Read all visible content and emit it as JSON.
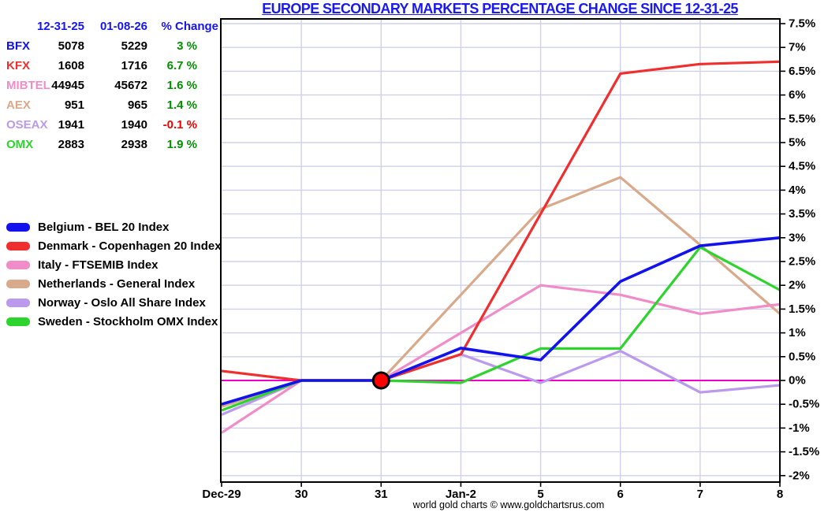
{
  "title": "EUROPE SECONDARY MARKETS PERCENTAGE CHANGE SINCE 12-31-25",
  "title_color": "#1a1af0",
  "footer": "world gold charts © www.goldchartsrus.com",
  "table": {
    "headers": [
      "12-31-25",
      "01-08-26",
      "% Change"
    ],
    "rows": [
      {
        "label": "BFX",
        "color": "#1212ee",
        "v1": "5078",
        "v2": "5229",
        "pct": "3 %",
        "pct_color": "#009000"
      },
      {
        "label": "KFX",
        "color": "#f02e2e",
        "v1": "1608",
        "v2": "1716",
        "pct": "6.7 %",
        "pct_color": "#009000"
      },
      {
        "label": "MIBTEL",
        "color": "#f08cc8",
        "v1": "44945",
        "v2": "45672",
        "pct": "1.6 %",
        "pct_color": "#009000"
      },
      {
        "label": "AEX",
        "color": "#d8a98a",
        "v1": "951",
        "v2": "965",
        "pct": "1.4 %",
        "pct_color": "#009000"
      },
      {
        "label": "OSEAX",
        "color": "#bb99ec",
        "v1": "1941",
        "v2": "1940",
        "pct": "-0.1 %",
        "pct_color": "#f00000"
      },
      {
        "label": "OMX",
        "color": "#2dd42d",
        "v1": "2883",
        "v2": "2938",
        "pct": "1.9 %",
        "pct_color": "#009000"
      }
    ]
  },
  "chart_data": {
    "type": "line",
    "categories": [
      "Dec-29",
      "30",
      "31",
      "Jan-2",
      "5",
      "6",
      "7",
      "8"
    ],
    "series": [
      {
        "name": "Belgium - BEL 20 Index",
        "color": "#1212ee",
        "values": [
          -0.5,
          0,
          0,
          0.68,
          0.43,
          2.08,
          2.83,
          3.0
        ]
      },
      {
        "name": "Denmark - Copenhagen 20 Index",
        "color": "#f02e2e",
        "values": [
          0.2,
          0,
          0,
          0.55,
          3.5,
          6.45,
          6.65,
          6.7
        ]
      },
      {
        "name": "Italy - FTSEMIB Index",
        "color": "#f08cc8",
        "values": [
          -1.1,
          0,
          0,
          1.0,
          2.0,
          1.8,
          1.4,
          1.6
        ]
      },
      {
        "name": "Netherlands - General Index",
        "color": "#d8a98a",
        "values": [
          -0.55,
          0,
          0,
          1.8,
          3.6,
          4.27,
          2.85,
          1.4
        ]
      },
      {
        "name": "Norway -  Oslo All Share Index",
        "color": "#bb99ec",
        "values": [
          -0.72,
          0,
          0,
          0.55,
          -0.05,
          0.62,
          -0.25,
          -0.1
        ]
      },
      {
        "name": "Sweden -  Stockholm OMX Index",
        "color": "#2dd42d",
        "values": [
          -0.63,
          0,
          0,
          -0.05,
          0.67,
          0.67,
          2.8,
          1.9
        ]
      }
    ],
    "ylim": [
      -2,
      7.5
    ],
    "ytick_step": 0.5,
    "ytick_labels": [
      "7.5%",
      "7%",
      "6.5%",
      "6%",
      "5.5%",
      "5%",
      "4.5%",
      "4%",
      "3.5%",
      "3%",
      "2.5%",
      "2%",
      "1.5%",
      "1%",
      "0.5%",
      "0%",
      "-0.5%",
      "-1%",
      "-1.5%",
      "-2%"
    ],
    "grid": true,
    "legend_position": "left",
    "zero_line_color": "#f000c8",
    "grid_color": "#d0d0ea",
    "marker": {
      "category": "31",
      "x_index": 2,
      "value": 0,
      "fill": "#ff0000",
      "outline": "#000000"
    }
  }
}
